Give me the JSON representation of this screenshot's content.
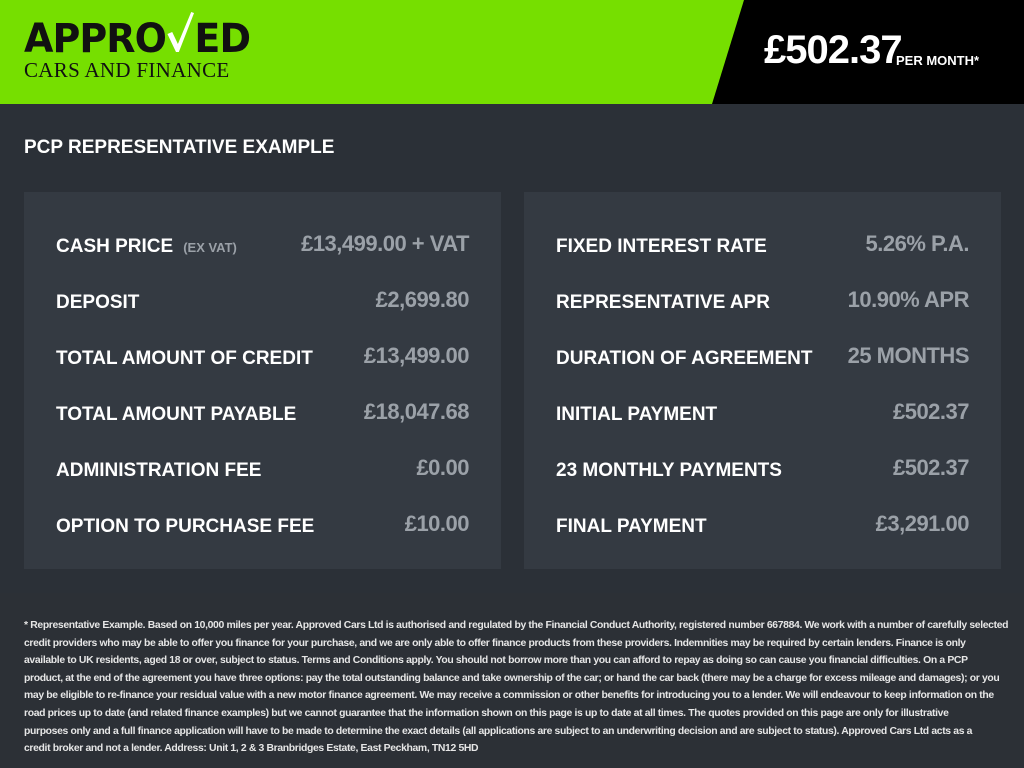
{
  "header": {
    "logo_text": "APPROVED",
    "logo_sub": "CARS AND FINANCE",
    "price": "£502.37",
    "per_month": "PER MONTH*",
    "colors": {
      "green": "#76df00",
      "black": "#000000"
    }
  },
  "title": "PCP REPRESENTATIVE EXAMPLE",
  "left": [
    {
      "label": "CASH PRICE",
      "sub": "(EX VAT)",
      "value": "£13,499.00 + VAT"
    },
    {
      "label": "DEPOSIT",
      "value": "£2,699.80"
    },
    {
      "label": "TOTAL AMOUNT OF CREDIT",
      "value": "£13,499.00"
    },
    {
      "label": "TOTAL AMOUNT PAYABLE",
      "value": "£18,047.68"
    },
    {
      "label": "ADMINISTRATION FEE",
      "value": "£0.00"
    },
    {
      "label": "OPTION TO PURCHASE FEE",
      "value": "£10.00"
    }
  ],
  "right": [
    {
      "label": "FIXED INTEREST RATE",
      "value": "5.26% P.A."
    },
    {
      "label": "REPRESENTATIVE APR",
      "value": "10.90% APR"
    },
    {
      "label": "DURATION OF AGREEMENT",
      "value": "25 MONTHS"
    },
    {
      "label": "INITIAL PAYMENT",
      "value": "£502.37"
    },
    {
      "label": "23 MONTHLY PAYMENTS",
      "value": "£502.37"
    },
    {
      "label": "FINAL PAYMENT",
      "value": "£3,291.00"
    }
  ],
  "disclaimer": [
    "* Representative Example. Based on 10,000 miles per year. Approved Cars Ltd is authorised and regulated by the Financial Conduct Authority, registered number 667884. We work with a number of carefully selected",
    "credit providers who may be able to offer you finance for your purchase, and we are only able to offer finance products from these providers. Indemnities may be required by certain lenders. Finance is only",
    "available to UK residents, aged 18 or over, subject to status. Terms and Conditions apply. You should not borrow more than you can afford to repay as doing so can cause you financial difficulties. On a PCP",
    "product, at the end of the agreement you have three options: pay the total outstanding balance and take ownership of the car; or hand the car back (there may be a charge for excess mileage and damages); or you",
    "may be eligible to re-finance your residual value with a new motor finance agreement. We may receive a commission or other benefits for introducing you to a lender. We will endeavour to keep information on the",
    "road prices up to date (and related finance examples) but we cannot guarantee that the information shown on this page is up to date at all times. The quotes provided on this page are only for illustrative",
    "purposes only and a full finance application will have to be made to determine the exact details (all applications are subject to an underwriting decision and are subject to status). Approved Cars Ltd acts as a",
    "credit broker and not a lender. Address: Unit 1, 2 & 3 Branbridges Estate, East Peckham, TN12 5HD"
  ]
}
